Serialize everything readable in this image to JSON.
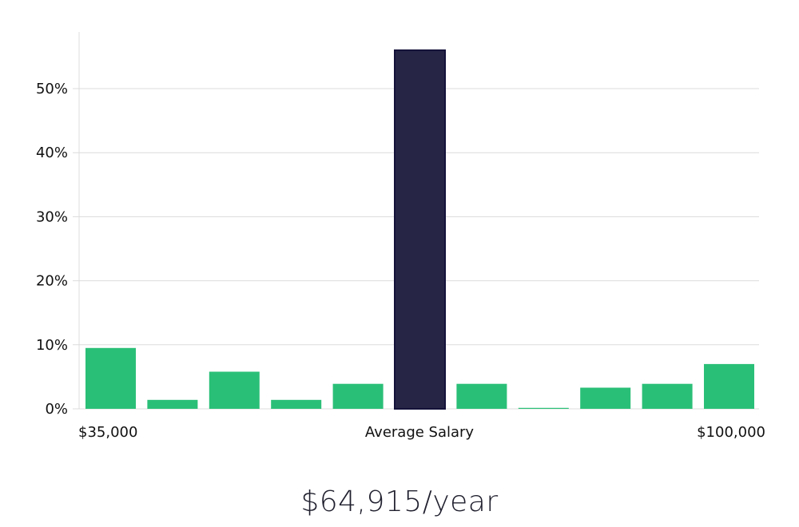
{
  "chart_data": {
    "type": "bar",
    "title": "",
    "xlabel": "",
    "ylabel": "",
    "ylim": [
      0,
      58
    ],
    "y_ticks": [
      0,
      10,
      20,
      30,
      40,
      50
    ],
    "y_tick_labels": [
      "0%",
      "10%",
      "20%",
      "30%",
      "40%",
      "50%"
    ],
    "grid": true,
    "values": [
      9.5,
      1.4,
      5.8,
      1.4,
      3.9,
      56,
      3.9,
      0.15,
      3.3,
      3.9,
      7.0
    ],
    "highlight_index": 5,
    "x_labels": {
      "left": "$35,000",
      "center": "Average Salary",
      "right": "$100,000"
    }
  },
  "colors": {
    "bar": "#2abf77",
    "highlight": "#272546",
    "highlight_border": "#14123a",
    "grid": "#dcdcdc",
    "axis": "#dcdcdc"
  },
  "summary": {
    "salary": "$64,915/year"
  }
}
